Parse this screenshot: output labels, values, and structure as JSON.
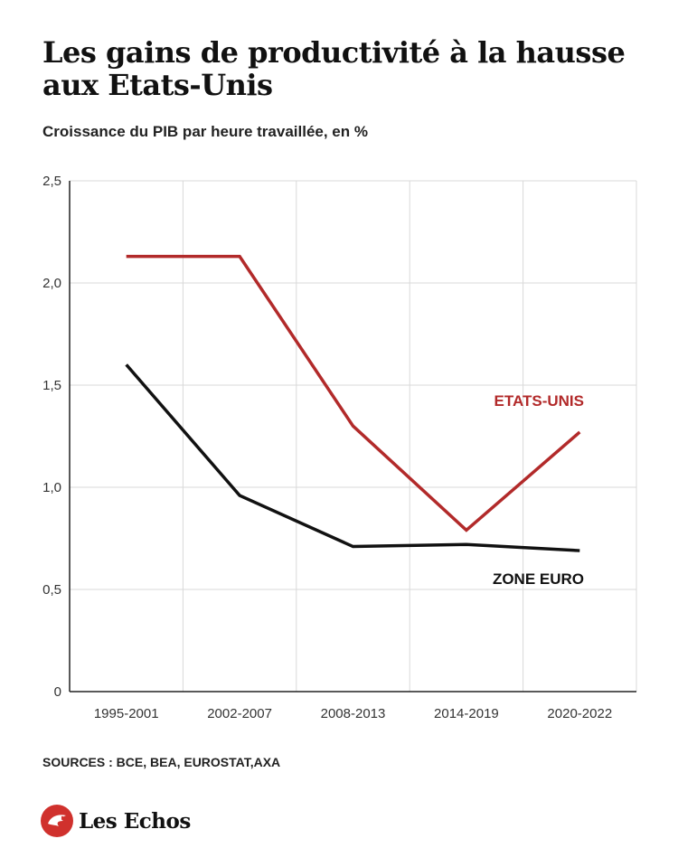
{
  "header": {
    "title": "Les gains de productivité à la hausse aux Etats-Unis",
    "subtitle": "Croissance du PIB par heure travaillée, en %"
  },
  "chart_data": {
    "type": "line",
    "title": "Les gains de productivité à la hausse aux Etats-Unis",
    "subtitle": "Croissance du PIB par heure travaillée, en %",
    "categories": [
      "1995-2001",
      "2002-2007",
      "2008-2013",
      "2014-2019",
      "2020-2022"
    ],
    "series": [
      {
        "name": "ETATS-UNIS",
        "color": "#b22a2a",
        "values": [
          2.13,
          2.13,
          1.3,
          0.79,
          1.27
        ]
      },
      {
        "name": "ZONE EURO",
        "color": "#111111",
        "values": [
          1.6,
          0.96,
          0.71,
          0.72,
          0.69
        ]
      }
    ],
    "yticks": [
      "0",
      "0,5",
      "1,0",
      "1,5",
      "2,0",
      "2,5"
    ],
    "ylim": [
      0,
      2.5
    ],
    "grid": true,
    "legend": "inline-right"
  },
  "footer": {
    "sources": "SOURCES : BCE, BEA, EUROSTAT,AXA",
    "brand": "Les Echos",
    "logo_icon": "les-echos-logo-icon"
  }
}
